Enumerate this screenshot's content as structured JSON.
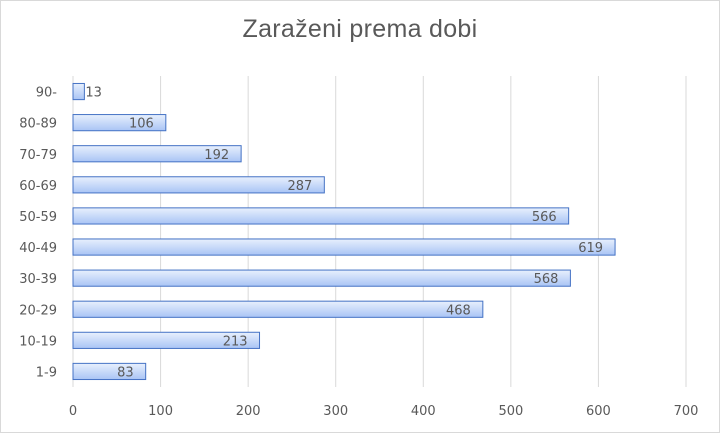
{
  "chart_data": {
    "type": "bar",
    "orientation": "horizontal",
    "title": "Zaraženi prema dobi",
    "xlabel": "",
    "ylabel": "",
    "categories": [
      "1-9",
      "10-19",
      "20-29",
      "30-39",
      "40-49",
      "50-59",
      "60-69",
      "70-79",
      "80-89",
      "90-"
    ],
    "values": [
      83,
      213,
      468,
      568,
      619,
      566,
      287,
      192,
      106,
      13
    ],
    "xlim": [
      0,
      700
    ],
    "x_ticks": [
      0,
      100,
      200,
      300,
      400,
      500,
      600,
      700
    ],
    "grid": "vertical",
    "legend": "none",
    "data_labels": "inside-end",
    "colors": {
      "bar_fill_light": "#e8f0fd",
      "bar_fill_dark": "#a9c4f5",
      "bar_stroke": "#4472c4",
      "grid": "#d9d9d9",
      "text": "#595959"
    }
  }
}
